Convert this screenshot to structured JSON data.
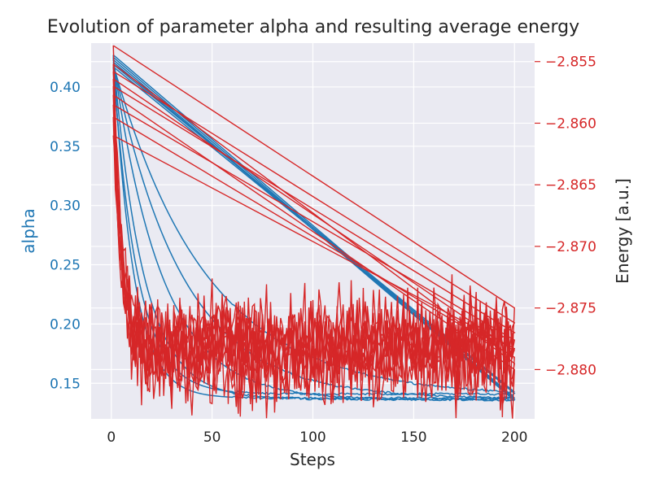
{
  "chart_data": {
    "type": "line",
    "title": "Evolution of parameter alpha and resulting average energy",
    "xlabel": "Steps",
    "ylabel_left": "alpha",
    "ylabel_right": "Energy [a.u.]",
    "xlim": [
      -10,
      210
    ],
    "ylim_left": [
      0.12,
      0.437
    ],
    "ylim_right": [
      -2.884,
      -2.8535
    ],
    "x_ticks": [
      "0",
      "50",
      "100",
      "150",
      "200"
    ],
    "y_left_ticks": [
      "0.15",
      "0.20",
      "0.25",
      "0.30",
      "0.35",
      "0.40"
    ],
    "y_right_ticks": [
      "−2.880",
      "−2.875",
      "−2.870",
      "−2.865",
      "−2.860",
      "−2.855"
    ],
    "grid": true,
    "colors": {
      "alpha": "#1f77b4",
      "energy": "#d62728",
      "background": "#eaeaf2",
      "grid": "#ffffff"
    },
    "alpha_runs": [
      {
        "start": 0.427,
        "end": 0.1375,
        "decay_steps": 10.0
      },
      {
        "start": 0.425,
        "end": 0.1365,
        "decay_steps": 15.0
      },
      {
        "start": 0.423,
        "end": 0.136,
        "decay_steps": 24.0
      },
      {
        "start": 0.421,
        "end": 0.137,
        "decay_steps": 34.0
      },
      {
        "start": 0.419,
        "end": 0.139,
        "decay_steps": 46.0
      },
      {
        "start": 0.417,
        "end": 0.141,
        "decay_steps": 12.0
      }
    ],
    "energy_runs": [
      {
        "start": -2.8537,
        "end": -2.875,
        "mean": -2.8785,
        "noise": 0.0021
      },
      {
        "start": -2.8552,
        "end": -2.8795,
        "mean": -2.879,
        "noise": 0.0019
      },
      {
        "start": -2.8558,
        "end": -2.8762,
        "mean": -2.8775,
        "noise": 0.0022
      },
      {
        "start": -2.8564,
        "end": -2.8785,
        "mean": -2.878,
        "noise": 0.0018
      },
      {
        "start": -2.857,
        "end": -2.877,
        "mean": -2.8782,
        "noise": 0.0021
      },
      {
        "start": -2.8577,
        "end": -2.88,
        "mean": -2.8788,
        "noise": 0.002
      },
      {
        "start": -2.8585,
        "end": -2.8776,
        "mean": -2.8778,
        "noise": 0.0019
      },
      {
        "start": -2.8595,
        "end": -2.879,
        "mean": -2.8784,
        "noise": 0.0021
      },
      {
        "start": -2.861,
        "end": -2.8783,
        "mean": -2.8781,
        "noise": 0.0018
      }
    ]
  }
}
